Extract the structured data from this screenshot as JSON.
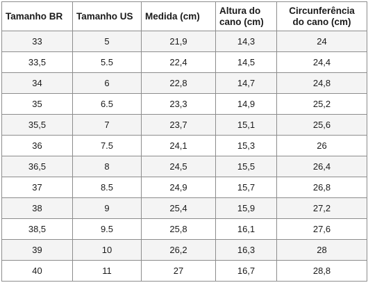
{
  "table": {
    "headers": [
      {
        "line1": "Tamanho BR",
        "line2": ""
      },
      {
        "line1": "Tamanho US",
        "line2": ""
      },
      {
        "line1": "Medida (cm)",
        "line2": ""
      },
      {
        "line1": "Altura do",
        "line2": "cano (cm)"
      },
      {
        "line1": "Circunferência",
        "line2": "do cano (cm)"
      }
    ],
    "rows": [
      [
        "33",
        "5",
        "21,9",
        "14,3",
        "24"
      ],
      [
        "33,5",
        "5.5",
        "22,4",
        "14,5",
        "24,4"
      ],
      [
        "34",
        "6",
        "22,8",
        "14,7",
        "24,8"
      ],
      [
        "35",
        "6.5",
        "23,3",
        "14,9",
        "25,2"
      ],
      [
        "35,5",
        "7",
        "23,7",
        "15,1",
        "25,6"
      ],
      [
        "36",
        "7.5",
        "24,1",
        "15,3",
        "26"
      ],
      [
        "36,5",
        "8",
        "24,5",
        "15,5",
        "26,4"
      ],
      [
        "37",
        "8.5",
        "24,9",
        "15,7",
        "26,8"
      ],
      [
        "38",
        "9",
        "25,4",
        "15,9",
        "27,2"
      ],
      [
        "38,5",
        "9.5",
        "25,8",
        "16,1",
        "27,6"
      ],
      [
        "39",
        "10",
        "26,2",
        "16,3",
        "28"
      ],
      [
        "40",
        "11",
        "27",
        "16,7",
        "28,8"
      ]
    ]
  }
}
